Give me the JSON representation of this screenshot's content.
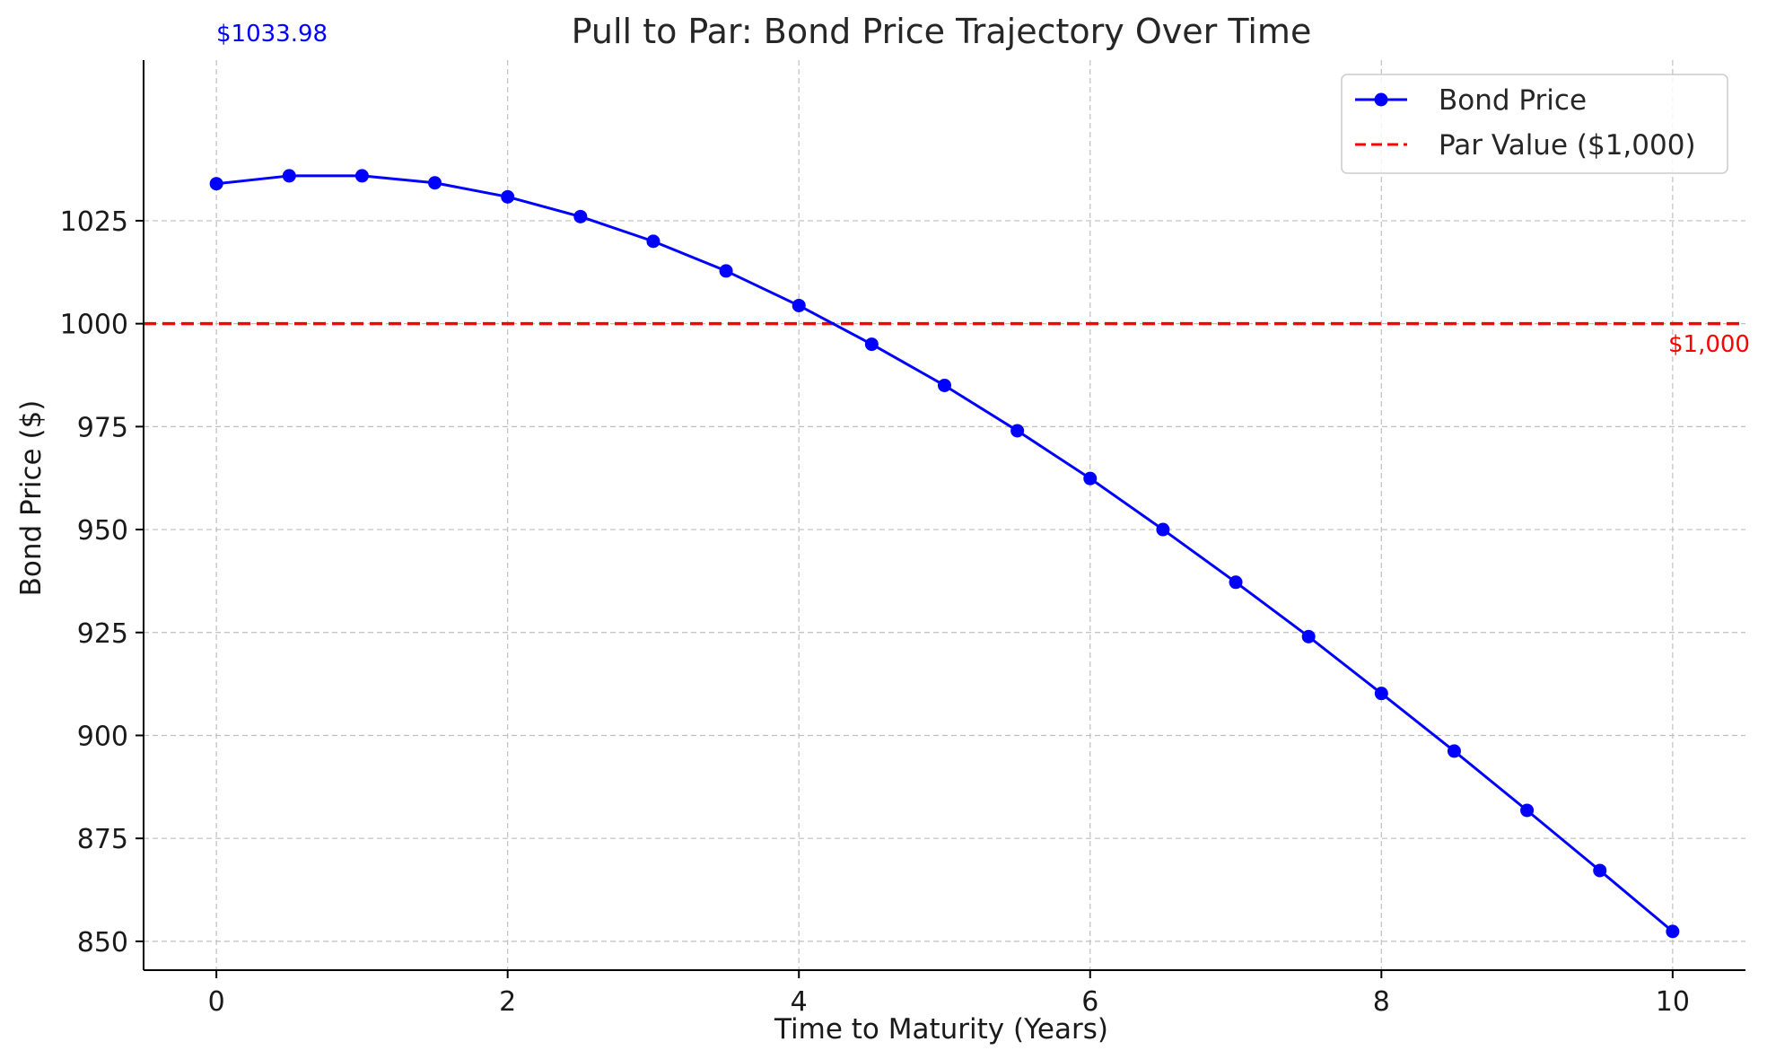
{
  "chart_data": {
    "type": "line",
    "title": "Pull to Par: Bond Price Trajectory Over Time",
    "xlabel": "Time to Maturity (Years)",
    "ylabel": "Bond Price ($)",
    "xlim": [
      -0.5,
      10.5
    ],
    "ylim": [
      843,
      1064
    ],
    "xticks": [
      0,
      2,
      4,
      6,
      8,
      10
    ],
    "yticks": [
      850,
      875,
      900,
      925,
      950,
      975,
      1000,
      1025
    ],
    "grid": true,
    "legend_position": "top-right",
    "series": [
      {
        "name": "Bond Price",
        "color": "#0000ff",
        "style": "solid-with-markers",
        "x": [
          0,
          0.5,
          1,
          1.5,
          2,
          2.5,
          3,
          3.5,
          4,
          4.5,
          5,
          5.5,
          6,
          6.5,
          7,
          7.5,
          8,
          8.5,
          9,
          9.5,
          10
        ],
        "y": [
          1033.98,
          1035.9,
          1035.9,
          1034.2,
          1030.8,
          1026.0,
          1020.0,
          1012.8,
          1004.4,
          995.0,
          985.0,
          974.0,
          962.4,
          950.0,
          937.2,
          924.0,
          910.2,
          896.2,
          881.8,
          867.2,
          852.4
        ]
      },
      {
        "name": "Par Value ($1,000)",
        "color": "#ff0000",
        "style": "dashed",
        "y_const": 1000
      }
    ],
    "annotations": [
      {
        "text": "$1033.98",
        "x": 0,
        "y": 1033.98,
        "color": "#0000ff"
      },
      {
        "text": "$1,000",
        "x": 10,
        "y": 1000,
        "color": "#ff0000"
      }
    ]
  }
}
